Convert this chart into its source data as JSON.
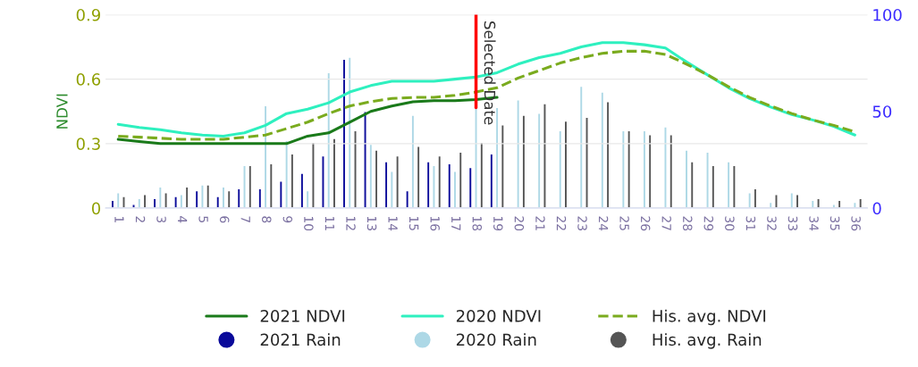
{
  "chart_data": {
    "type": "bar",
    "ylabel": "NDVI",
    "categories": [
      "1",
      "2",
      "3",
      "4",
      "5",
      "6",
      "7",
      "8",
      "9",
      "10",
      "11",
      "12",
      "13",
      "14",
      "15",
      "16",
      "17",
      "18",
      "19",
      "20",
      "21",
      "22",
      "23",
      "24",
      "25",
      "26",
      "27",
      "28",
      "29",
      "30",
      "31",
      "32",
      "33",
      "34",
      "35",
      "36"
    ],
    "series": [
      {
        "name": "2021 NDVI",
        "type": "line",
        "color": "#1a7a1a",
        "values": [
          0.32,
          0.31,
          0.3,
          0.3,
          0.3,
          0.3,
          0.3,
          0.3,
          0.3,
          0.335,
          0.35,
          0.4,
          0.45,
          0.475,
          0.495,
          0.5,
          0.5,
          0.505,
          0.515,
          null,
          null,
          null,
          null,
          null,
          null,
          null,
          null,
          null,
          null,
          null,
          null,
          null,
          null,
          null,
          null,
          null
        ]
      },
      {
        "name": "2020 NDVI",
        "type": "line",
        "color": "#2ef0bf",
        "values": [
          0.39,
          0.375,
          0.365,
          0.35,
          0.34,
          0.335,
          0.35,
          0.385,
          0.44,
          0.46,
          0.49,
          0.54,
          0.57,
          0.59,
          0.59,
          0.59,
          0.6,
          0.61,
          0.63,
          0.67,
          0.7,
          0.72,
          0.75,
          0.77,
          0.77,
          0.76,
          0.745,
          0.68,
          0.62,
          0.56,
          0.51,
          0.47,
          0.435,
          0.41,
          0.38,
          0.34
        ]
      },
      {
        "name": "His. avg. NDVI",
        "type": "line",
        "line_style": "dashed",
        "color": "#7aab1e",
        "values": [
          0.335,
          0.33,
          0.325,
          0.32,
          0.32,
          0.32,
          0.33,
          0.34,
          0.37,
          0.4,
          0.44,
          0.475,
          0.495,
          0.51,
          0.515,
          0.515,
          0.525,
          0.54,
          0.56,
          0.605,
          0.64,
          0.675,
          0.7,
          0.72,
          0.73,
          0.73,
          0.715,
          0.67,
          0.62,
          0.565,
          0.515,
          0.475,
          0.44,
          0.41,
          0.385,
          0.355
        ]
      },
      {
        "name": "2021 Rain",
        "axis": "y2",
        "color": "#0a0a9a",
        "values": [
          4,
          2,
          5,
          6,
          9,
          6,
          10,
          10,
          14,
          18,
          27,
          77,
          50,
          24,
          9,
          24,
          23,
          21,
          28,
          null,
          null,
          null,
          null,
          null,
          null,
          null,
          null,
          null,
          null,
          null,
          null,
          null,
          null,
          null,
          null,
          null
        ]
      },
      {
        "name": "2020 Rain",
        "axis": "y2",
        "color": "#add8e6",
        "values": [
          8,
          5,
          11,
          7,
          12,
          11,
          22,
          53,
          35,
          9,
          70,
          78,
          33,
          19,
          48,
          22,
          19,
          52,
          52,
          56,
          49,
          40,
          63,
          60,
          40,
          40,
          42,
          30,
          29,
          24,
          8,
          3,
          8,
          4,
          2,
          3
        ]
      },
      {
        "name": "His. avg. Rain",
        "axis": "y2",
        "color": "#555555",
        "values": [
          6,
          7,
          8,
          11,
          12,
          9,
          22,
          23,
          28,
          34,
          36,
          40,
          30,
          27,
          32,
          27,
          29,
          34,
          43,
          48,
          54,
          45,
          47,
          55,
          40,
          38,
          38,
          24,
          22,
          22,
          10,
          7,
          7,
          5,
          4,
          5
        ]
      }
    ],
    "ylim": [
      0,
      0.9
    ],
    "yticks": [
      0,
      0.3,
      0.6,
      0.9
    ],
    "y2lim": [
      0,
      100
    ],
    "y2ticks": [
      0,
      50,
      100
    ],
    "ref_lines": [
      {
        "axis": "x",
        "value": "18",
        "label": "Selected Date",
        "color": "#ff0000"
      }
    ],
    "grid": "y",
    "legend": "bottom"
  }
}
